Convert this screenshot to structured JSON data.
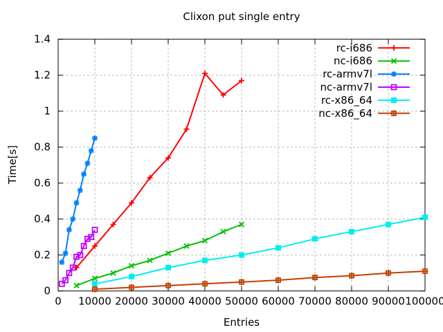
{
  "chart_data": {
    "type": "line",
    "title": "Clixon put single entry",
    "xlabel": "Entries",
    "ylabel": "Time[s]",
    "xlim": [
      0,
      100000
    ],
    "ylim": [
      0,
      1.4
    ],
    "xticks": [
      0,
      10000,
      20000,
      30000,
      40000,
      50000,
      60000,
      70000,
      80000,
      90000,
      100000
    ],
    "yticks": [
      0,
      0.2,
      0.4,
      0.6,
      0.8,
      1,
      1.2,
      1.4
    ],
    "grid": true,
    "grid_color": "#b8b8b8",
    "axis_color": "#000000",
    "background_color": "#ffffff",
    "legend_position": "top-right inside",
    "series": [
      {
        "name": "rc-i686",
        "color": "#ff0000",
        "marker": "plus",
        "x": [
          5000,
          10000,
          15000,
          20000,
          25000,
          30000,
          35000,
          40000,
          45000,
          50000
        ],
        "y": [
          0.13,
          0.25,
          0.37,
          0.49,
          0.63,
          0.74,
          0.9,
          1.21,
          1.09,
          1.17
        ]
      },
      {
        "name": "nc-i686",
        "color": "#00c000",
        "marker": "cross",
        "x": [
          5000,
          10000,
          15000,
          20000,
          25000,
          30000,
          35000,
          40000,
          45000,
          50000
        ],
        "y": [
          0.03,
          0.07,
          0.1,
          0.14,
          0.17,
          0.21,
          0.25,
          0.28,
          0.33,
          0.37
        ]
      },
      {
        "name": "rc-armv7l",
        "color": "#0080ff",
        "marker": "asterisk",
        "x": [
          1000,
          2000,
          3000,
          4000,
          5000,
          6000,
          7000,
          8000,
          9000,
          10000
        ],
        "y": [
          0.16,
          0.21,
          0.34,
          0.4,
          0.49,
          0.56,
          0.65,
          0.71,
          0.78,
          0.85
        ]
      },
      {
        "name": "nc-armv7l",
        "color": "#c000ff",
        "marker": "open-square",
        "x": [
          1000,
          2000,
          3000,
          4000,
          5000,
          6000,
          7000,
          8000,
          9000,
          10000
        ],
        "y": [
          0.04,
          0.06,
          0.1,
          0.13,
          0.19,
          0.2,
          0.25,
          0.29,
          0.3,
          0.34
        ]
      },
      {
        "name": "rc-x86_64",
        "color": "#00eeee",
        "marker": "filled-square",
        "x": [
          10000,
          20000,
          30000,
          40000,
          50000,
          60000,
          70000,
          80000,
          90000,
          100000
        ],
        "y": [
          0.04,
          0.08,
          0.13,
          0.17,
          0.2,
          0.24,
          0.29,
          0.33,
          0.37,
          0.41
        ]
      },
      {
        "name": "nc-x86_64",
        "color": "#c04000",
        "marker": "square-plus",
        "x": [
          10000,
          20000,
          30000,
          40000,
          50000,
          60000,
          70000,
          80000,
          90000,
          100000
        ],
        "y": [
          0.01,
          0.02,
          0.03,
          0.04,
          0.05,
          0.06,
          0.075,
          0.085,
          0.1,
          0.11
        ]
      }
    ]
  }
}
